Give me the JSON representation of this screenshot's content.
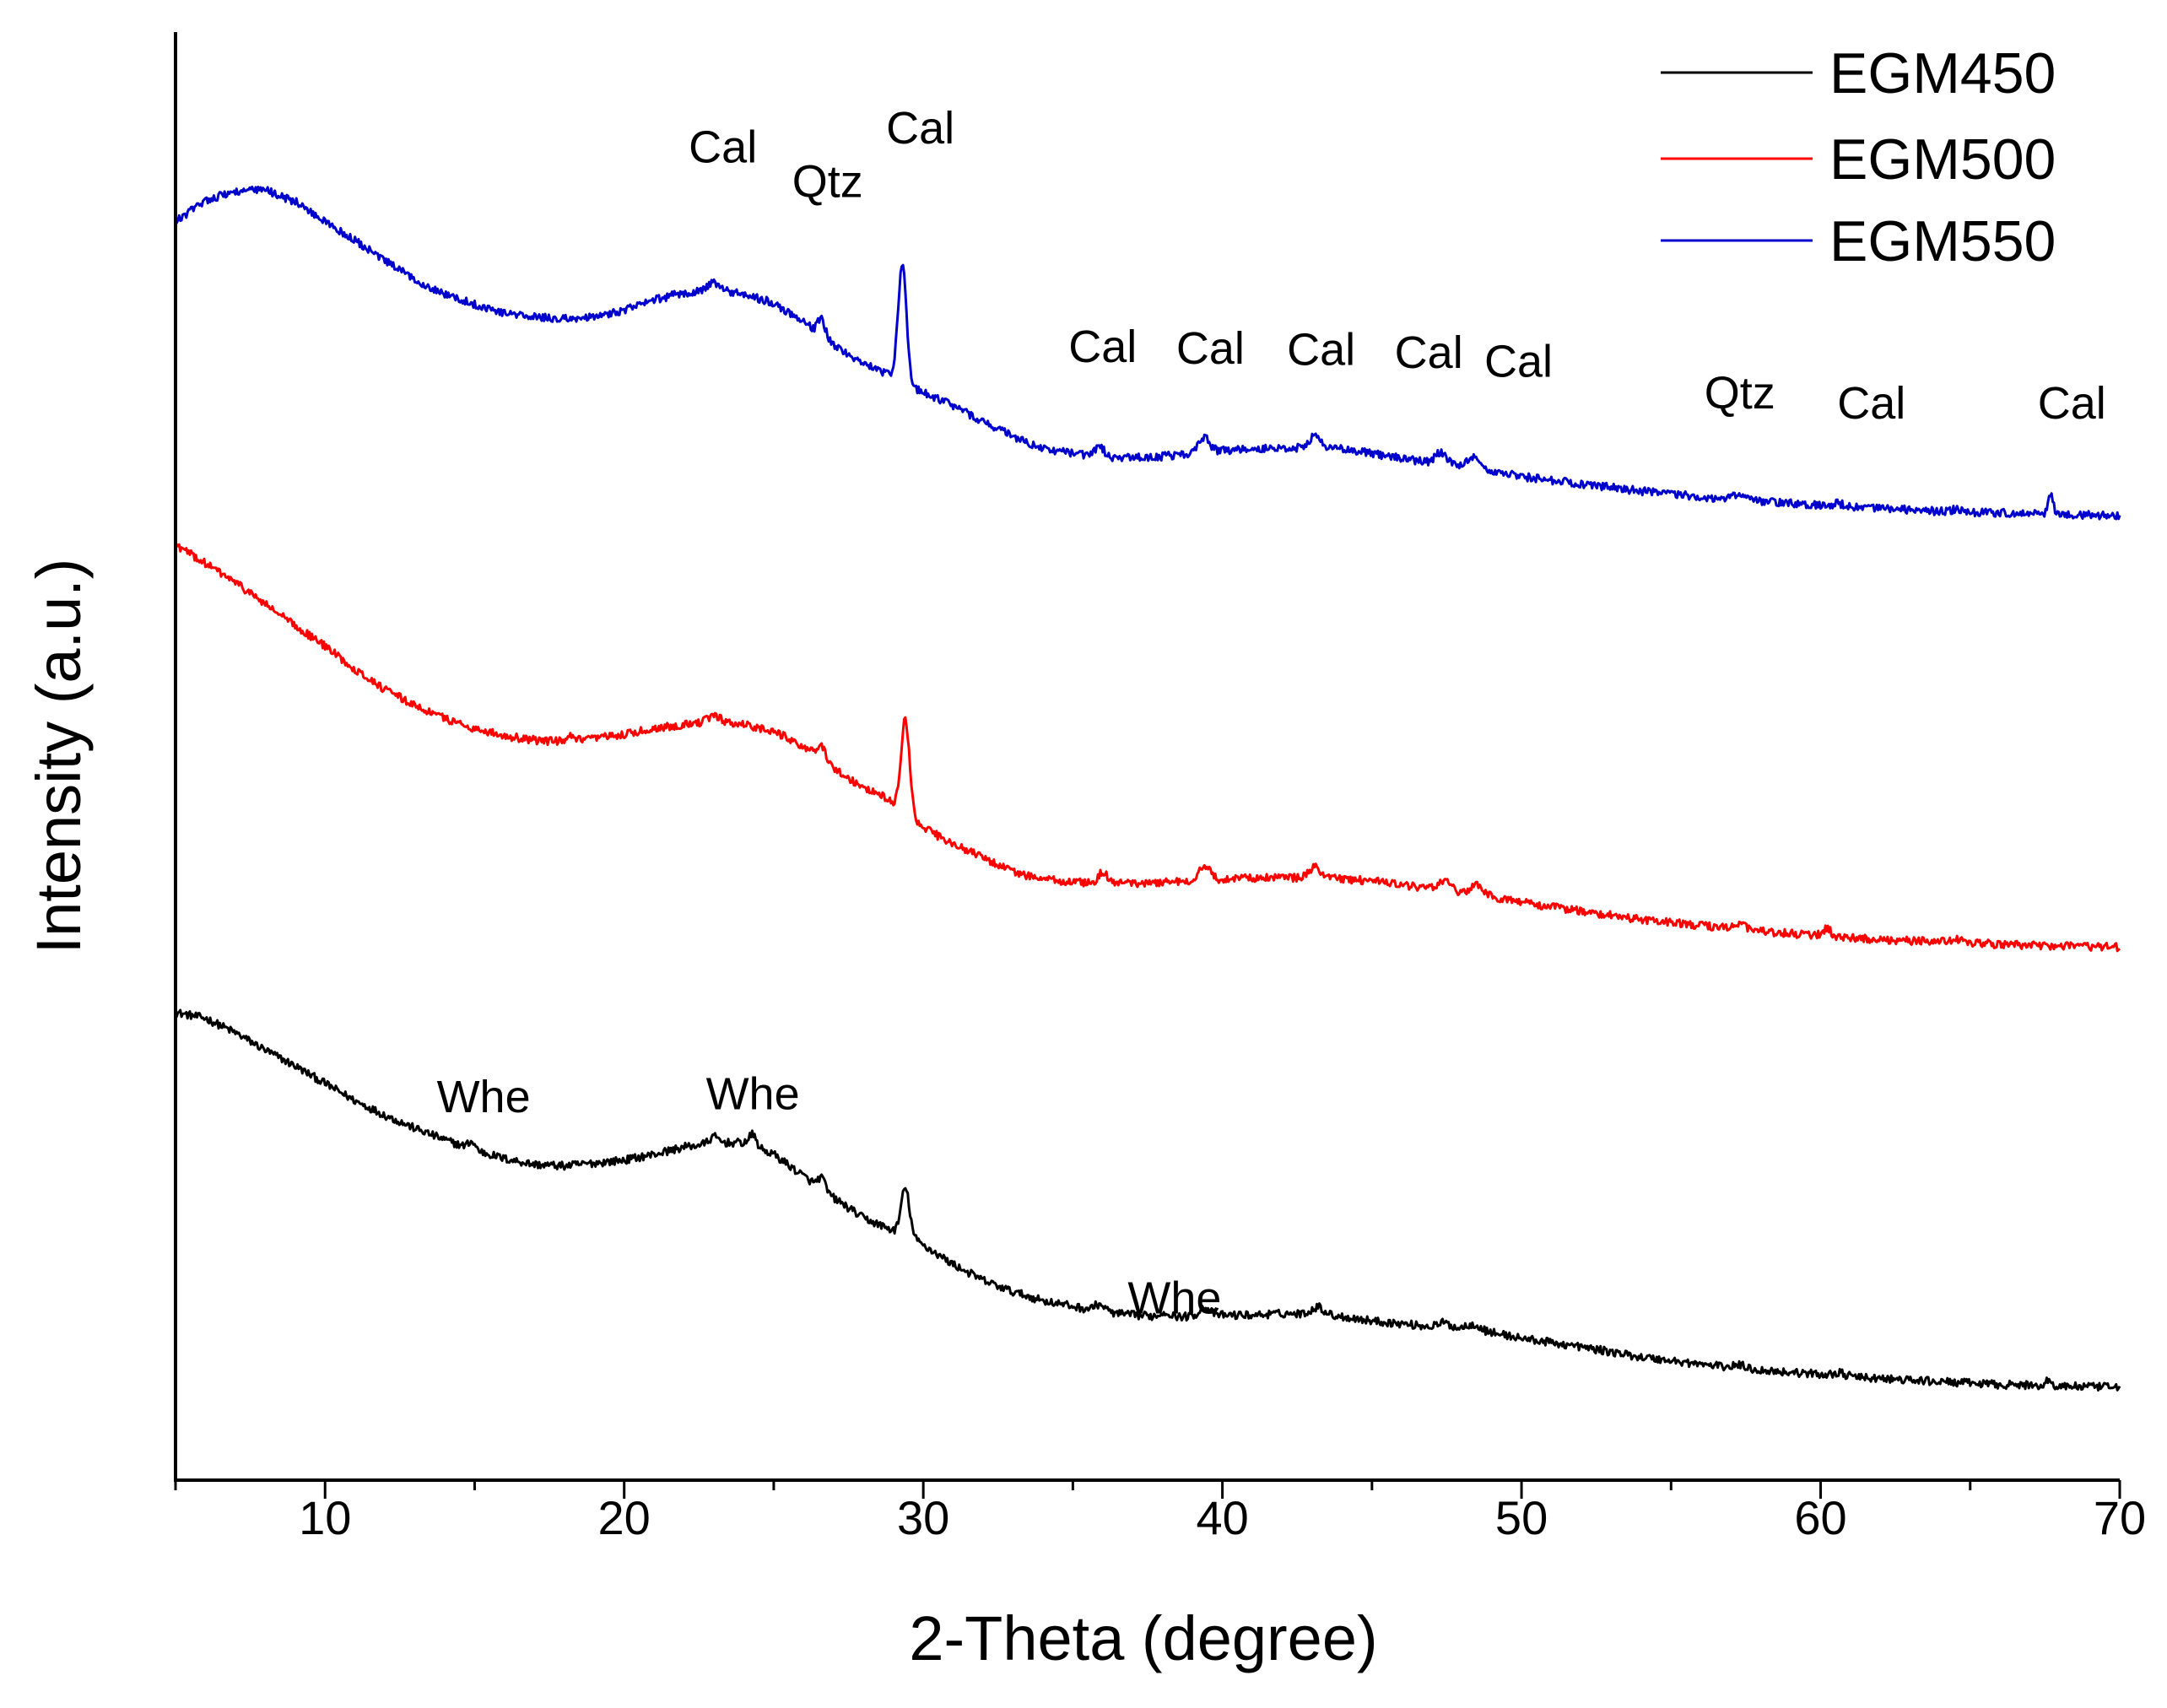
{
  "chart_data": {
    "type": "line",
    "title": "",
    "xlabel": "2-Theta (degree)",
    "ylabel": "Intensity (a.u.)",
    "xlim": [
      5,
      70
    ],
    "ylim": [
      0,
      100
    ],
    "x_ticks": [
      10,
      20,
      30,
      40,
      50,
      60,
      70
    ],
    "x_tick_labels": [
      "10",
      "20",
      "30",
      "40",
      "50",
      "60",
      "70"
    ],
    "y_tick_labels": "none",
    "legend": {
      "placement": "top-right",
      "entries": [
        "EGM450",
        "EGM500",
        "EGM550"
      ]
    },
    "series": [
      {
        "name": "EGM450",
        "color": "#000000",
        "baseline": [
          [
            5,
            32.3
          ],
          [
            6,
            31.9
          ],
          [
            7,
            30.9
          ],
          [
            8,
            29.7
          ],
          [
            9,
            28.6
          ],
          [
            10,
            27.4
          ],
          [
            11,
            26.2
          ],
          [
            12,
            25.2
          ],
          [
            13,
            24.3
          ],
          [
            14,
            23.5
          ],
          [
            15,
            22.8
          ],
          [
            16,
            22.2
          ],
          [
            17,
            21.8
          ],
          [
            18,
            21.7
          ],
          [
            19,
            21.9
          ],
          [
            20,
            22.1
          ],
          [
            21,
            22.5
          ],
          [
            22,
            23.0
          ],
          [
            23,
            23.3
          ],
          [
            24,
            23.3
          ],
          [
            25,
            22.5
          ],
          [
            26,
            21.0
          ],
          [
            27,
            19.5
          ],
          [
            28,
            18.1
          ],
          [
            28.8,
            17.4
          ],
          [
            29.8,
            16.5
          ],
          [
            31,
            14.9
          ],
          [
            32,
            13.8
          ],
          [
            33,
            13.0
          ],
          [
            34,
            12.4
          ],
          [
            35,
            12.0
          ],
          [
            36,
            11.6
          ],
          [
            37,
            11.4
          ],
          [
            38,
            11.3
          ],
          [
            39,
            11.3
          ],
          [
            40,
            11.4
          ],
          [
            41,
            11.4
          ],
          [
            42,
            11.5
          ],
          [
            43,
            11.5
          ],
          [
            44,
            11.3
          ],
          [
            45,
            11.0
          ],
          [
            46,
            10.8
          ],
          [
            47,
            10.6
          ],
          [
            48,
            10.5
          ],
          [
            49,
            10.2
          ],
          [
            50,
            9.8
          ],
          [
            52,
            9.2
          ],
          [
            54,
            8.5
          ],
          [
            56,
            8.0
          ],
          [
            58,
            7.6
          ],
          [
            60,
            7.3
          ],
          [
            62,
            7.0
          ],
          [
            64,
            6.8
          ],
          [
            66,
            6.6
          ],
          [
            68,
            6.5
          ],
          [
            70,
            6.4
          ]
        ],
        "peaks": [
          [
            14.9,
            0.5,
            0.12
          ],
          [
            23,
            0.4,
            0.15
          ],
          [
            24.3,
            0.8,
            0.12
          ],
          [
            26.6,
            0.8,
            0.12
          ],
          [
            29.4,
            3.3,
            0.14
          ],
          [
            35.9,
            0.5,
            0.18
          ],
          [
            38.1,
            0.3,
            0.15
          ],
          [
            39.4,
            0.6,
            0.18
          ],
          [
            43.2,
            0.5,
            0.2
          ],
          [
            47.4,
            0.3,
            0.2
          ],
          [
            48.4,
            0.4,
            0.2
          ],
          [
            57.3,
            0.2,
            0.2
          ],
          [
            60.6,
            0.2,
            0.2
          ],
          [
            67.6,
            0.4,
            0.08
          ]
        ]
      },
      {
        "name": "EGM500",
        "color": "#ff0000",
        "baseline": [
          [
            5,
            64.6
          ],
          [
            6,
            63.3
          ],
          [
            7,
            62.0
          ],
          [
            8,
            60.5
          ],
          [
            9,
            59.0
          ],
          [
            10,
            57.6
          ],
          [
            11,
            56.0
          ],
          [
            12,
            54.6
          ],
          [
            13,
            53.5
          ],
          [
            14,
            52.6
          ],
          [
            15,
            51.9
          ],
          [
            16,
            51.4
          ],
          [
            17,
            51.1
          ],
          [
            18,
            51.0
          ],
          [
            19,
            51.2
          ],
          [
            20,
            51.5
          ],
          [
            21,
            51.9
          ],
          [
            22,
            52.2
          ],
          [
            23,
            52.4
          ],
          [
            24,
            52.2
          ],
          [
            25,
            51.7
          ],
          [
            26,
            50.7
          ],
          [
            27,
            49.2
          ],
          [
            28,
            47.8
          ],
          [
            28.8,
            47.1
          ],
          [
            29.8,
            45.3
          ],
          [
            31,
            43.9
          ],
          [
            32,
            43.0
          ],
          [
            33,
            42.0
          ],
          [
            34,
            41.5
          ],
          [
            35,
            41.3
          ],
          [
            36,
            41.2
          ],
          [
            37,
            41.2
          ],
          [
            38,
            41.3
          ],
          [
            39,
            41.4
          ],
          [
            40,
            41.5
          ],
          [
            41,
            41.6
          ],
          [
            42,
            41.6
          ],
          [
            43,
            41.6
          ],
          [
            44,
            41.5
          ],
          [
            45,
            41.4
          ],
          [
            46,
            41.1
          ],
          [
            47,
            40.8
          ],
          [
            48,
            40.6
          ],
          [
            49,
            40.3
          ],
          [
            50,
            39.9
          ],
          [
            52,
            39.3
          ],
          [
            54,
            38.7
          ],
          [
            56,
            38.3
          ],
          [
            58,
            37.9
          ],
          [
            60,
            37.6
          ],
          [
            62,
            37.3
          ],
          [
            64,
            37.2
          ],
          [
            66,
            37.0
          ],
          [
            68,
            36.9
          ],
          [
            70,
            36.8
          ]
        ],
        "peaks": [
          [
            18.2,
            0.3,
            0.1
          ],
          [
            23,
            0.4,
            0.2
          ],
          [
            26.6,
            0.9,
            0.12
          ],
          [
            29.4,
            6.6,
            0.14
          ],
          [
            36,
            0.8,
            0.15
          ],
          [
            39.4,
            1.0,
            0.18
          ],
          [
            43.1,
            0.8,
            0.18
          ],
          [
            47.4,
            0.7,
            0.2
          ],
          [
            48.5,
            0.6,
            0.2
          ],
          [
            57.3,
            0.3,
            0.2
          ],
          [
            60.2,
            0.5,
            0.15
          ],
          [
            64.6,
            0.2,
            0.2
          ]
        ]
      },
      {
        "name": "EGM550",
        "color": "#0000cc",
        "baseline": [
          [
            5,
            86.9
          ],
          [
            6,
            88.4
          ],
          [
            7,
            89.0
          ],
          [
            8,
            89.1
          ],
          [
            9,
            88.3
          ],
          [
            10,
            86.9
          ],
          [
            11,
            85.6
          ],
          [
            12,
            84.2
          ],
          [
            13,
            82.9
          ],
          [
            14,
            81.9
          ],
          [
            15,
            81.2
          ],
          [
            16,
            80.6
          ],
          [
            17,
            80.3
          ],
          [
            18,
            80.2
          ],
          [
            19,
            80.3
          ],
          [
            20,
            80.8
          ],
          [
            21,
            81.5
          ],
          [
            22,
            82.0
          ],
          [
            23,
            82.2
          ],
          [
            24,
            81.9
          ],
          [
            25,
            81.3
          ],
          [
            26,
            80.0
          ],
          [
            27,
            78.4
          ],
          [
            28,
            77.1
          ],
          [
            28.8,
            76.4
          ],
          [
            29.8,
            75.3
          ],
          [
            31,
            74.2
          ],
          [
            32,
            73.1
          ],
          [
            33,
            72.1
          ],
          [
            34,
            71.2
          ],
          [
            35,
            70.9
          ],
          [
            36,
            70.6
          ],
          [
            37,
            70.6
          ],
          [
            38,
            70.7
          ],
          [
            39,
            70.9
          ],
          [
            40,
            71.1
          ],
          [
            41,
            71.2
          ],
          [
            42,
            71.3
          ],
          [
            43,
            71.3
          ],
          [
            44,
            71.2
          ],
          [
            45,
            70.9
          ],
          [
            46,
            70.6
          ],
          [
            47,
            70.2
          ],
          [
            48,
            70.0
          ],
          [
            49,
            69.7
          ],
          [
            50,
            69.3
          ],
          [
            52,
            68.8
          ],
          [
            54,
            68.3
          ],
          [
            56,
            67.9
          ],
          [
            58,
            67.6
          ],
          [
            60,
            67.3
          ],
          [
            62,
            67.1
          ],
          [
            64,
            66.9
          ],
          [
            66,
            66.8
          ],
          [
            68,
            66.7
          ],
          [
            70,
            66.6
          ]
        ],
        "peaks": [
          [
            23,
            0.5,
            0.2
          ],
          [
            26.6,
            1.2,
            0.12
          ],
          [
            29.3,
            8.0,
            0.14
          ],
          [
            35.9,
            0.8,
            0.15
          ],
          [
            39.4,
            1.0,
            0.18
          ],
          [
            43.1,
            0.9,
            0.18
          ],
          [
            47.3,
            0.8,
            0.2
          ],
          [
            48.4,
            0.8,
            0.2
          ],
          [
            57.2,
            0.3,
            0.2
          ],
          [
            60.6,
            0.2,
            0.2
          ],
          [
            64.6,
            0.2,
            0.2
          ],
          [
            67.7,
            1.3,
            0.08
          ]
        ]
      }
    ],
    "annotations": [
      {
        "text": "Cal",
        "x": 23.3,
        "y": 91.0
      },
      {
        "text": "Qtz",
        "x": 26.8,
        "y": 88.6
      },
      {
        "text": "Cal",
        "x": 29.9,
        "y": 92.3
      },
      {
        "text": "Cal",
        "x": 36.0,
        "y": 77.2
      },
      {
        "text": "Cal",
        "x": 39.6,
        "y": 77.1
      },
      {
        "text": "Cal",
        "x": 43.3,
        "y": 77.0
      },
      {
        "text": "Cal",
        "x": 46.9,
        "y": 76.8
      },
      {
        "text": "Cal",
        "x": 49.9,
        "y": 76.2
      },
      {
        "text": "Qtz",
        "x": 57.3,
        "y": 74.0
      },
      {
        "text": "Cal",
        "x": 61.7,
        "y": 73.3
      },
      {
        "text": "Cal",
        "x": 68.4,
        "y": 73.3
      },
      {
        "text": "Whe",
        "x": 15.3,
        "y": 25.4
      },
      {
        "text": "Whe",
        "x": 24.3,
        "y": 25.6
      },
      {
        "text": "Whe",
        "x": 38.4,
        "y": 11.5
      }
    ]
  }
}
